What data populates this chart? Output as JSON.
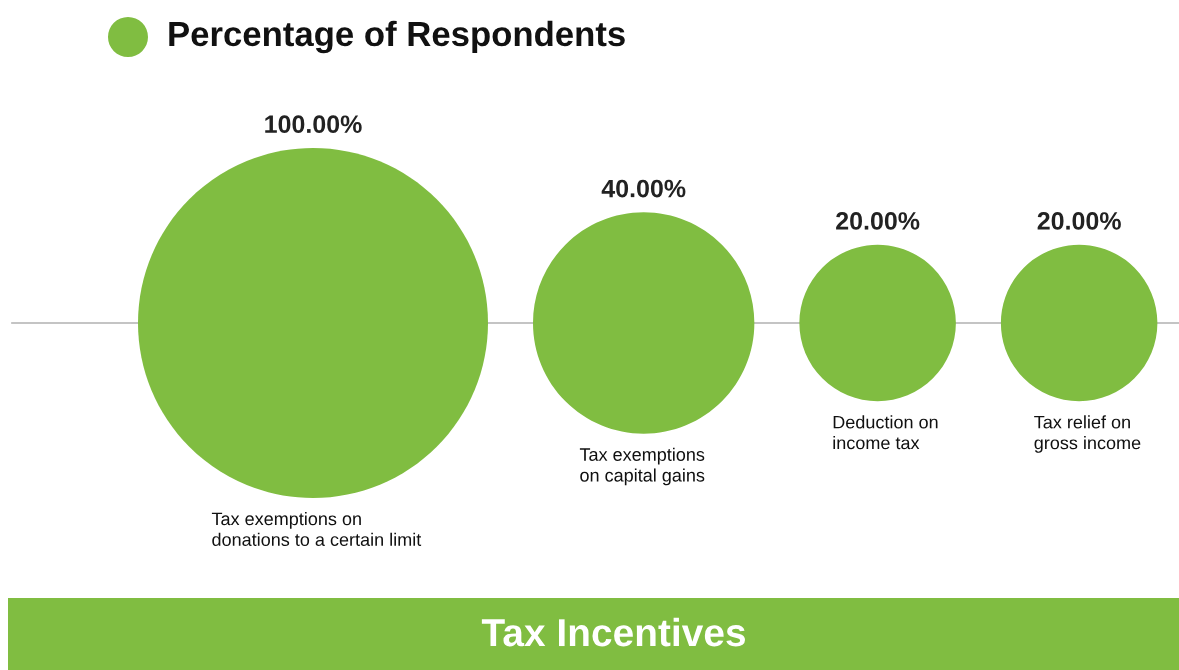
{
  "chart_data": {
    "type": "other",
    "title": "Tax Incentives",
    "categories": [
      "Tax exemptions on\ndonations to a certain limit",
      "Tax exemptions\non capital gains",
      "Deduction on\nincome tax",
      "Tax relief on\ngross income"
    ],
    "series": [
      {
        "name": "Percentage of Respondents",
        "color": "#80bd41",
        "values": [
          100,
          40,
          20,
          20
        ],
        "value_labels": [
          "100.00%",
          "40.00%",
          "20.00%",
          "20.00%"
        ]
      }
    ],
    "legend": "top left"
  }
}
